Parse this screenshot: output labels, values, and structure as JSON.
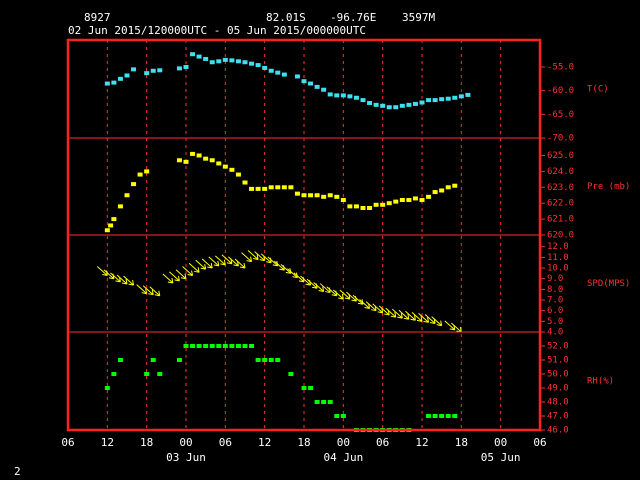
{
  "header": {
    "station": "8927",
    "lat": "82.01S",
    "lon": "-96.76E",
    "elev": "3597M",
    "period": "02 Jun 2015/120000UTC - 05 Jun 2015/000000UTC"
  },
  "page_number": "2",
  "chart_data": [
    {
      "type": "scatter",
      "label": "T(C)",
      "color": "#40e0f0",
      "xlim": [
        0,
        72
      ],
      "ylim": [
        -70,
        -49.3
      ],
      "yticks": [
        {
          "value": -55,
          "label": "-55.0"
        },
        {
          "value": -60,
          "label": "-60.0"
        },
        {
          "value": -65,
          "label": "-65.0"
        },
        {
          "value": -70,
          "label": "-70.0"
        }
      ],
      "x": [
        6,
        7,
        8,
        9,
        10,
        12,
        13,
        14,
        17,
        18,
        19,
        20,
        21,
        22,
        23,
        24,
        25,
        26,
        27,
        28,
        29,
        30,
        31,
        32,
        33,
        35,
        36,
        37,
        38,
        39,
        40,
        41,
        42,
        43,
        44,
        45,
        46,
        47,
        48,
        49,
        50,
        51,
        52,
        53,
        54,
        55,
        56,
        57,
        58,
        59,
        60,
        61
      ],
      "values": [
        -58.5,
        -58.3,
        -57.5,
        -56.8,
        -55.5,
        -56.3,
        -55.8,
        -55.7,
        -55.3,
        -55,
        -52.3,
        -52.8,
        -53.3,
        -54,
        -53.8,
        -53.5,
        -53.6,
        -53.8,
        -54,
        -54.3,
        -54.6,
        -55.2,
        -55.8,
        -56.2,
        -56.6,
        -57,
        -58,
        -58.5,
        -59.2,
        -59.8,
        -60.8,
        -61,
        -61,
        -61.2,
        -61.5,
        -62,
        -62.6,
        -63,
        -63.2,
        -63.5,
        -63.5,
        -63.2,
        -63,
        -62.8,
        -62.5,
        -62,
        -62,
        -61.8,
        -61.7,
        -61.5,
        -61.2,
        -60.9
      ]
    },
    {
      "type": "scatter",
      "label": "Pre (mb)",
      "color": "#ffff00",
      "xlim": [
        0,
        72
      ],
      "ylim": [
        620,
        626.1
      ],
      "yticks": [
        {
          "value": 625,
          "label": "625.0"
        },
        {
          "value": 624,
          "label": "624.0"
        },
        {
          "value": 623,
          "label": "623.0"
        },
        {
          "value": 622,
          "label": "622.0"
        },
        {
          "value": 621,
          "label": "621.0"
        },
        {
          "value": 620,
          "label": "620.0"
        }
      ],
      "x": [
        6,
        6.5,
        7,
        8,
        9,
        10,
        11,
        12,
        17,
        18,
        19,
        20,
        21,
        22,
        23,
        24,
        25,
        26,
        27,
        28,
        29,
        30,
        31,
        32,
        33,
        34,
        35,
        36,
        37,
        38,
        39,
        40,
        41,
        42,
        43,
        44,
        45,
        46,
        47,
        48,
        49,
        50,
        51,
        52,
        53,
        54,
        55,
        56,
        57,
        58,
        59
      ],
      "values": [
        620.3,
        620.6,
        621,
        621.8,
        622.5,
        623.2,
        623.8,
        624,
        624.7,
        624.6,
        625.1,
        625,
        624.8,
        624.7,
        624.5,
        624.3,
        624.1,
        623.8,
        623.3,
        622.9,
        622.9,
        622.9,
        623,
        623,
        623,
        623,
        622.6,
        622.5,
        622.5,
        622.5,
        622.4,
        622.5,
        622.4,
        622.2,
        621.8,
        621.8,
        621.7,
        621.7,
        621.9,
        621.9,
        622,
        622.1,
        622.2,
        622.2,
        622.3,
        622.2,
        622.4,
        622.7,
        622.8,
        623,
        623.1
      ]
    },
    {
      "type": "arrows",
      "label": "SPD(MPS)",
      "color": "#ffff00",
      "xlim": [
        0,
        72
      ],
      "ylim": [
        4,
        13.1
      ],
      "yticks": [
        {
          "value": 12,
          "label": "12.0"
        },
        {
          "value": 11,
          "label": "11.0"
        },
        {
          "value": 10,
          "label": "10.0"
        },
        {
          "value": 9,
          "label": "9.0"
        },
        {
          "value": 8,
          "label": "8.0"
        },
        {
          "value": 7,
          "label": "7.0"
        },
        {
          "value": 6,
          "label": "6.0"
        },
        {
          "value": 5,
          "label": "5.0"
        },
        {
          "value": 4,
          "label": "4.0"
        }
      ],
      "x": [
        6,
        7,
        8,
        9,
        10,
        12,
        13,
        14,
        16,
        17,
        18,
        19,
        20,
        21,
        22,
        23,
        24,
        25,
        26,
        27,
        28,
        29,
        30,
        31,
        32,
        33,
        34,
        35,
        36,
        37,
        38,
        39,
        40,
        41,
        42,
        43,
        44,
        45,
        46,
        47,
        48,
        49,
        50,
        51,
        52,
        53,
        54,
        55,
        56,
        57,
        59,
        60
      ],
      "values": [
        9.3,
        9,
        8.7,
        8.5,
        8.4,
        7.6,
        7.5,
        7.4,
        8.6,
        8.8,
        9,
        9.3,
        9.6,
        9.9,
        10,
        10.2,
        10.3,
        10.4,
        10.2,
        10,
        10.6,
        10.8,
        10.7,
        10.5,
        10.2,
        9.8,
        9.5,
        9.1,
        8.7,
        8.4,
        8.1,
        7.8,
        7.7,
        7.4,
        7.1,
        7.1,
        6.9,
        6.6,
        6.2,
        6,
        5.8,
        5.6,
        5.4,
        5.3,
        5.2,
        5.1,
        5,
        4.9,
        4.8,
        4.6,
        4.2,
        4
      ]
    },
    {
      "type": "scatter",
      "label": "RH(%)",
      "color": "#00ff00",
      "xlim": [
        0,
        72
      ],
      "ylim": [
        46,
        53
      ],
      "yticks": [
        {
          "value": 52,
          "label": "52.0"
        },
        {
          "value": 51,
          "label": "51.0"
        },
        {
          "value": 50,
          "label": "50.0"
        },
        {
          "value": 49,
          "label": "49.0"
        },
        {
          "value": 48,
          "label": "48.0"
        },
        {
          "value": 47,
          "label": "47.0"
        },
        {
          "value": 46,
          "label": "46.0"
        }
      ],
      "x": [
        6,
        7,
        8,
        12,
        13,
        14,
        17,
        18,
        19,
        20,
        21,
        22,
        23,
        24,
        25,
        26,
        27,
        28,
        29,
        30,
        31,
        32,
        34,
        36,
        37,
        38,
        39,
        40,
        41,
        42,
        44,
        45,
        46,
        47,
        48,
        49,
        50,
        51,
        52,
        55,
        56,
        57,
        58,
        59
      ],
      "values": [
        49,
        50,
        51,
        50,
        51,
        50,
        51,
        52,
        52,
        52,
        52,
        52,
        52,
        52,
        52,
        52,
        52,
        52,
        51,
        51,
        51,
        51,
        50,
        49,
        49,
        48,
        48,
        48,
        47,
        47,
        46,
        46,
        46,
        46,
        46,
        46,
        46,
        46,
        46,
        47,
        47,
        47,
        47,
        47
      ],
      "xticks": [
        {
          "value": 0,
          "label": "06"
        },
        {
          "value": 6,
          "label": "12"
        },
        {
          "value": 12,
          "label": "18"
        },
        {
          "value": 18,
          "label": "00"
        },
        {
          "value": 24,
          "label": "06"
        },
        {
          "value": 30,
          "label": "12"
        },
        {
          "value": 36,
          "label": "18"
        },
        {
          "value": 42,
          "label": "00"
        },
        {
          "value": 48,
          "label": "06"
        },
        {
          "value": 54,
          "label": "12"
        },
        {
          "value": 60,
          "label": "18"
        },
        {
          "value": 66,
          "label": "00"
        },
        {
          "value": 72,
          "label": "06"
        }
      ],
      "date_labels": [
        {
          "value": 18,
          "label": "03 Jun"
        },
        {
          "value": 42,
          "label": "04 Jun"
        },
        {
          "value": 66,
          "label": "05 Jun"
        }
      ]
    }
  ]
}
